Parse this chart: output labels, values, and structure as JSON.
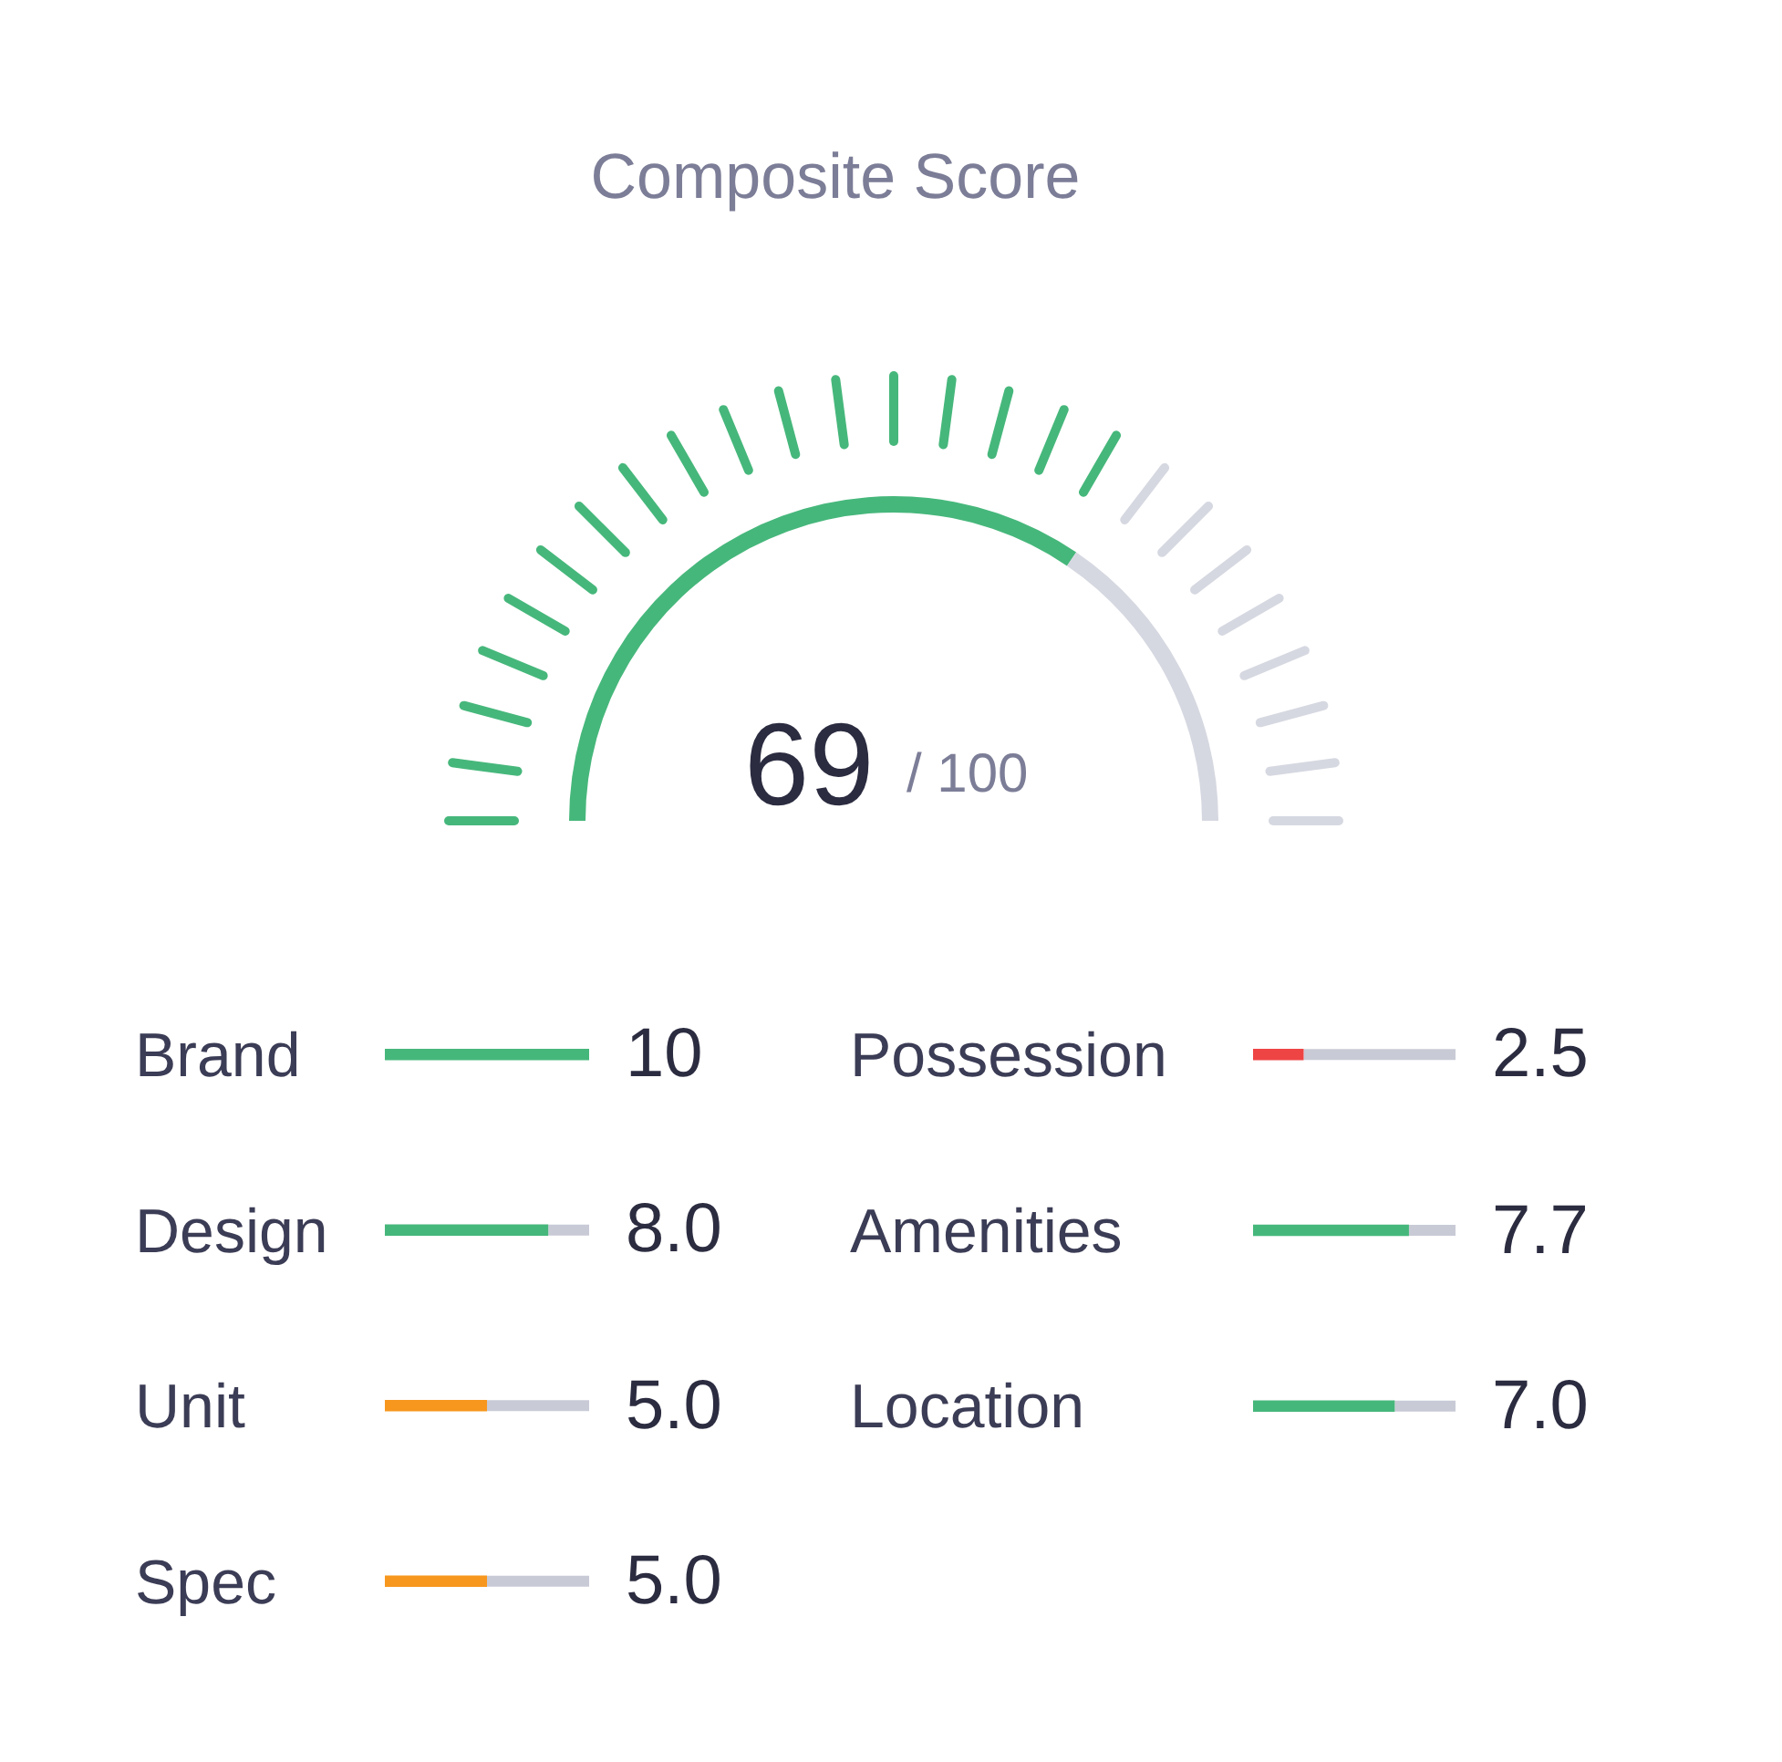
{
  "chart_data": [
    {
      "type": "donut",
      "title": "Composite Score",
      "categories": [
        null,
        null
      ],
      "values": [
        69,
        31
      ],
      "colors": [
        "#46b77b",
        "#d6d8e1"
      ],
      "annotations": [
        "69",
        "/ 100"
      ]
    },
    {
      "type": "bar",
      "orientation": "horizontal",
      "tick_labels": "y",
      "categories": [
        "Brand",
        "Design",
        "Unit",
        "Spec"
      ],
      "values": [
        10,
        8.0,
        5.0,
        5.0
      ],
      "colors": [
        "#46b77b",
        "#46b77b",
        "#f7971e",
        "#f7971e"
      ],
      "value_labels": [
        "10",
        "8.0",
        "5.0",
        "5.0"
      ]
    },
    {
      "type": "bar",
      "orientation": "horizontal",
      "tick_labels": "y",
      "categories": [
        "Possession",
        "Amenities",
        "Location"
      ],
      "values": [
        2.5,
        7.7,
        7.0
      ],
      "colors": [
        "#ef4444",
        "#46b77b",
        "#46b77b"
      ],
      "value_labels": [
        "2.5",
        "7.7",
        "7.0"
      ]
    }
  ]
}
